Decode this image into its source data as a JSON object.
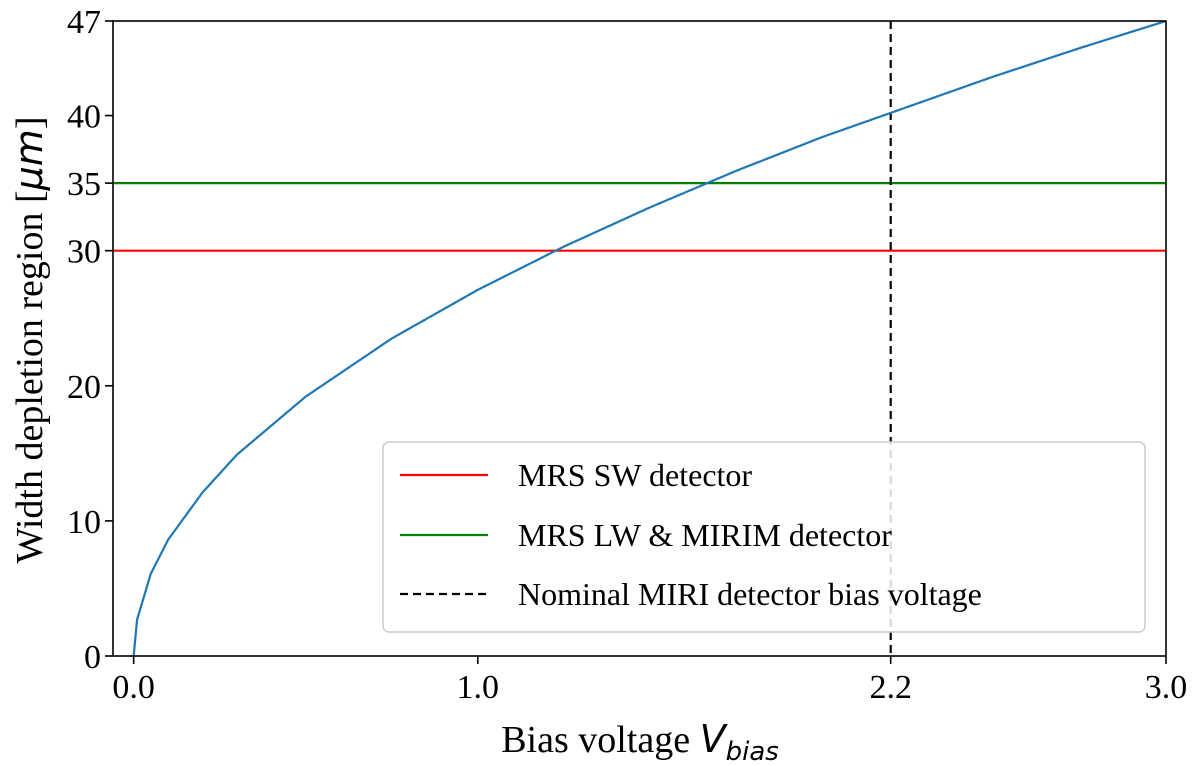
{
  "chart_data": {
    "type": "line",
    "title": "",
    "xlabel": {
      "main": "Bias voltage ",
      "symbol": "V",
      "subscript": "bias"
    },
    "ylabel": {
      "main": "Width depletion region [",
      "symbol": "μm",
      "close": "]"
    },
    "xlim": [
      -0.06,
      3.0
    ],
    "ylim": [
      0,
      47
    ],
    "xticks": [
      0.0,
      1.0,
      2.2,
      3.0
    ],
    "xtick_labels": [
      "0.0",
      "1.0",
      "2.2",
      "3.0"
    ],
    "yticks": [
      0,
      10,
      20,
      30,
      35,
      40,
      47
    ],
    "ytick_labels": [
      "0",
      "10",
      "20",
      "30",
      "35",
      "40",
      "47"
    ],
    "grid": false,
    "legend_position": "lower-right",
    "curve": {
      "color": "#1f77b4",
      "x": [
        0.0,
        0.01,
        0.05,
        0.1,
        0.2,
        0.3,
        0.5,
        0.75,
        1.0,
        1.25,
        1.5,
        1.75,
        2.0,
        2.2,
        2.5,
        2.75,
        3.0
      ],
      "y": [
        0.0,
        2.7,
        6.1,
        8.6,
        12.1,
        14.9,
        19.2,
        23.5,
        27.1,
        30.3,
        33.2,
        35.9,
        38.4,
        40.2,
        42.9,
        45.0,
        47.0
      ]
    },
    "hlines": [
      {
        "y": 30,
        "color": "#ff0000",
        "label": "MRS SW detector"
      },
      {
        "y": 35,
        "color": "#008000",
        "label": "MRS LW & MIRIM detector"
      }
    ],
    "vlines": [
      {
        "x": 2.2,
        "color": "#000000",
        "style": "dashed",
        "label": "Nominal MIRI detector bias voltage"
      }
    ]
  }
}
